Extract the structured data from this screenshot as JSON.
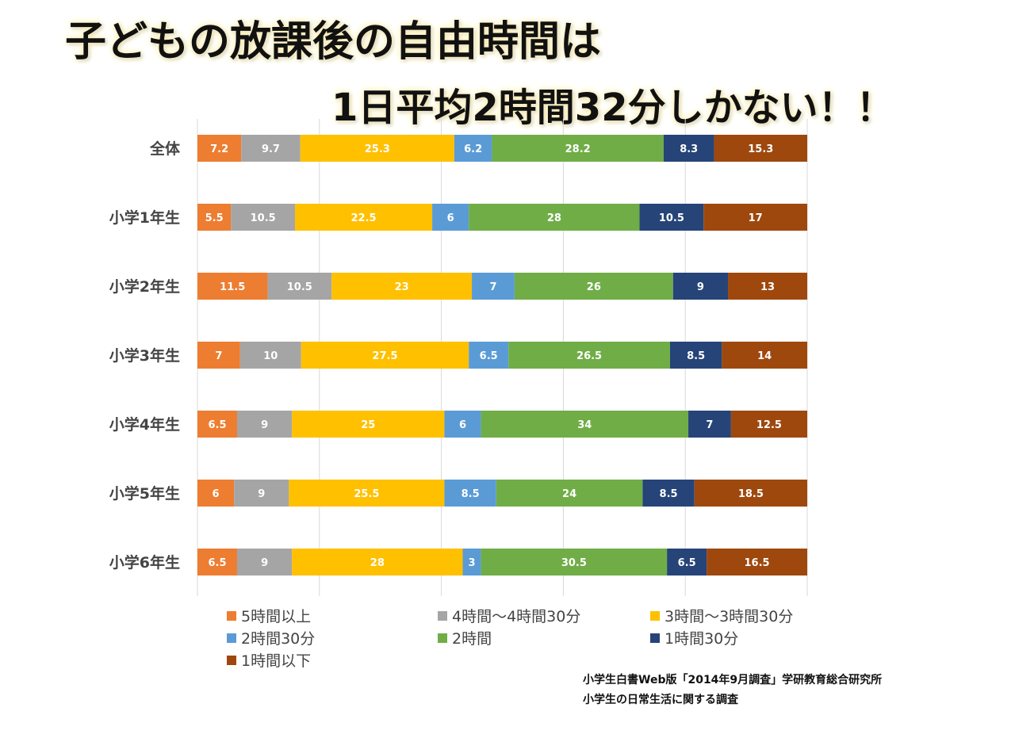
{
  "title": {
    "line1": "子どもの放課後の自由時間は",
    "line2": "1日平均2時間32分しかない！！"
  },
  "source": {
    "line1": "小学生白書Web版「2014年9月調査」学研教育総合研究所",
    "line2": "小学生の日常生活に関する調査"
  },
  "chart_data": {
    "type": "bar",
    "orientation": "horizontal",
    "stacked": "percent",
    "categories": [
      "全体",
      "小学1年生",
      "小学2年生",
      "小学3年生",
      "小学4年生",
      "小学5年生",
      "小学6年生"
    ],
    "series": [
      {
        "name": "5時間以上",
        "color": "#ED7D31",
        "values": [
          7.2,
          5.5,
          11.5,
          7,
          6.5,
          6,
          6.5
        ]
      },
      {
        "name": "4時間〜4時間30分",
        "color": "#A5A5A5",
        "values": [
          9.7,
          10.5,
          10.5,
          10,
          9,
          9,
          9
        ]
      },
      {
        "name": "3時間〜3時間30分",
        "color": "#FFC000",
        "values": [
          25.3,
          22.5,
          23,
          27.5,
          25,
          25.5,
          28
        ]
      },
      {
        "name": "2時間30分",
        "color": "#5B9BD5",
        "values": [
          6.2,
          6,
          7,
          6.5,
          6,
          8.5,
          3
        ]
      },
      {
        "name": "2時間",
        "color": "#70AD47",
        "values": [
          28.2,
          28,
          26,
          26.5,
          34,
          24,
          30.5
        ]
      },
      {
        "name": "1時間30分",
        "color": "#264478",
        "values": [
          8.3,
          10.5,
          9,
          8.5,
          7,
          8.5,
          6.5
        ]
      },
      {
        "name": "1時間以下",
        "color": "#9E480E",
        "values": [
          15.3,
          17,
          13,
          14,
          12.5,
          18.5,
          16.5
        ]
      }
    ],
    "xlim": [
      0,
      100
    ],
    "grid": true,
    "legend_position": "bottom"
  }
}
